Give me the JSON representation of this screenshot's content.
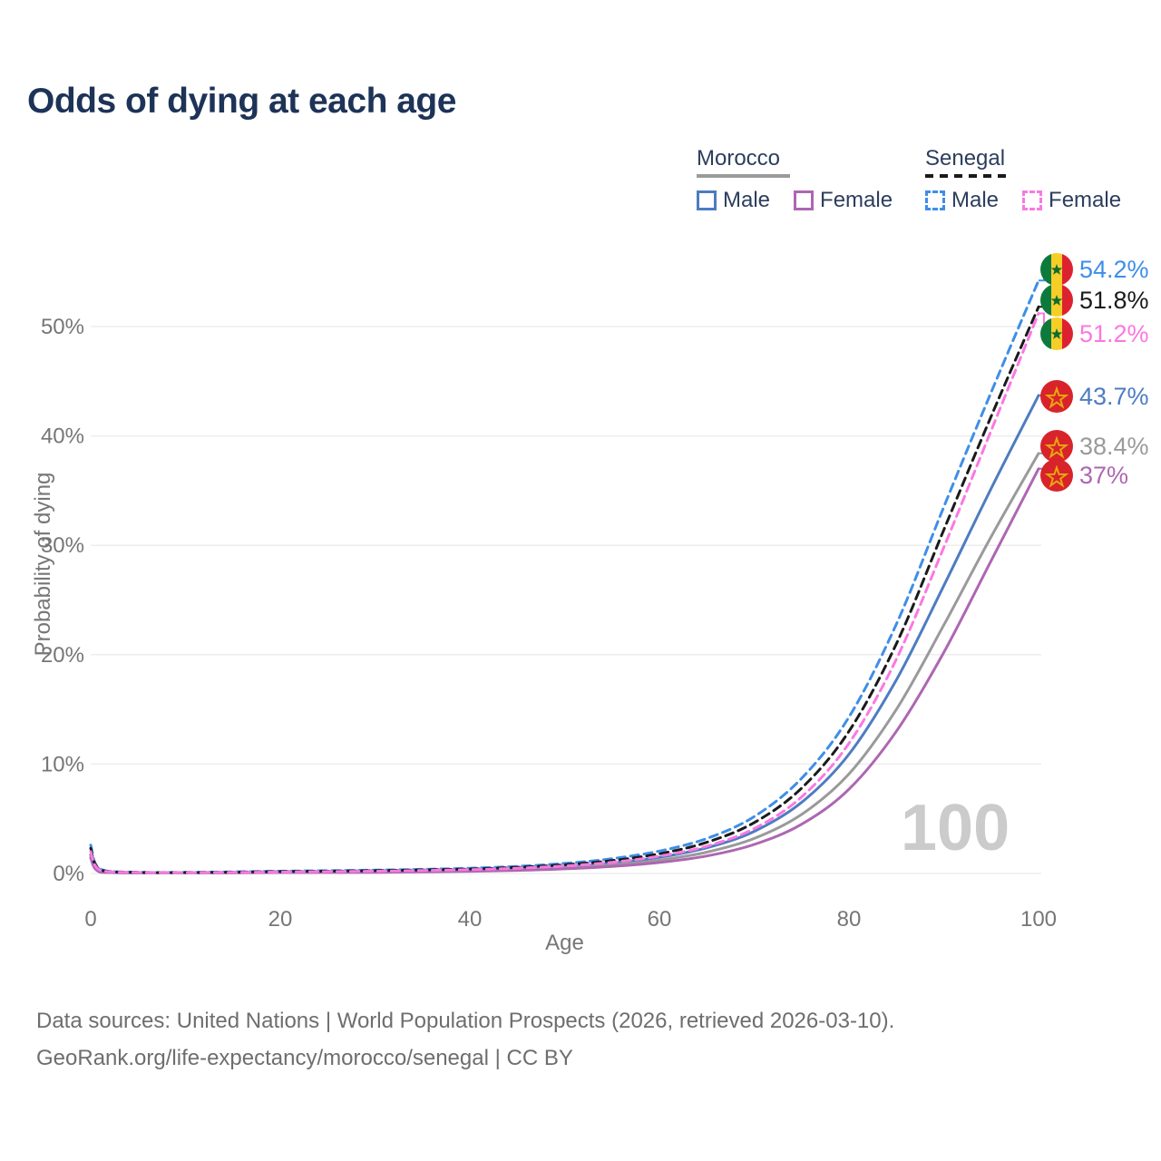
{
  "title": "Odds of dying at each age",
  "watermark": "100",
  "legend": {
    "groups": [
      {
        "country": "Morocco",
        "items": [
          {
            "label": "Male"
          },
          {
            "label": "Female"
          }
        ]
      },
      {
        "country": "Senegal",
        "items": [
          {
            "label": "Male"
          },
          {
            "label": "Female"
          }
        ]
      }
    ]
  },
  "footer": {
    "line1": "Data sources: United Nations | World Population Prospects (2026, retrieved 2026-03-10).",
    "line2": "GeoRank.org/life-expectancy/morocco/senegal | CC BY"
  },
  "chart_data": {
    "type": "line",
    "title": "Odds of dying at each age",
    "xlabel": "Age",
    "ylabel": "Probability of dying",
    "xlim": [
      0,
      100
    ],
    "ylim": [
      0,
      56
    ],
    "grid": "horizontal",
    "legend_position": "top-right",
    "x_ticks": [
      {
        "value": 0,
        "label": "0"
      },
      {
        "value": 20,
        "label": "20"
      },
      {
        "value": 40,
        "label": "40"
      },
      {
        "value": 60,
        "label": "60"
      },
      {
        "value": 80,
        "label": "80"
      },
      {
        "value": 100,
        "label": "100"
      }
    ],
    "y_ticks": [
      {
        "value": 0,
        "label": "0%"
      },
      {
        "value": 10,
        "label": "10%"
      },
      {
        "value": 20,
        "label": "20%"
      },
      {
        "value": 30,
        "label": "30%"
      },
      {
        "value": 40,
        "label": "40%"
      },
      {
        "value": 50,
        "label": "50%"
      }
    ],
    "x": [
      0,
      1,
      5,
      10,
      15,
      20,
      25,
      30,
      35,
      40,
      45,
      50,
      55,
      60,
      65,
      70,
      75,
      80,
      85,
      90,
      95,
      100
    ],
    "series": [
      {
        "id": "senegal-male",
        "name": "Senegal Male",
        "style": "dashed",
        "color": "#3e8ee8",
        "end_label": "54.2%",
        "flag": "senegal",
        "values": [
          2.6,
          0.4,
          0.12,
          0.1,
          0.15,
          0.21,
          0.26,
          0.31,
          0.38,
          0.48,
          0.65,
          0.92,
          1.35,
          2.05,
          3.2,
          5.2,
          8.7,
          14.3,
          22.8,
          33.5,
          44.0,
          54.2
        ]
      },
      {
        "id": "senegal-all",
        "name": "Senegal Both sexes",
        "style": "dashed",
        "color": "#1a1a1a",
        "end_label": "51.8%",
        "flag": "senegal",
        "values": [
          2.3,
          0.35,
          0.1,
          0.09,
          0.12,
          0.17,
          0.21,
          0.26,
          0.32,
          0.41,
          0.56,
          0.8,
          1.18,
          1.8,
          2.85,
          4.65,
          7.8,
          13.0,
          21.0,
          31.4,
          41.8,
          51.8
        ]
      },
      {
        "id": "senegal-female",
        "name": "Senegal Female",
        "style": "dashed",
        "color": "#fb78e2",
        "end_label": "51.2%",
        "flag": "senegal",
        "values": [
          2.0,
          0.3,
          0.09,
          0.08,
          0.1,
          0.13,
          0.17,
          0.21,
          0.27,
          0.35,
          0.48,
          0.69,
          1.02,
          1.58,
          2.5,
          4.1,
          7.0,
          11.9,
          19.6,
          29.8,
          40.5,
          51.2
        ]
      },
      {
        "id": "morocco-male",
        "name": "Morocco Male",
        "style": "solid",
        "color": "#4d7cc1",
        "end_label": "43.7%",
        "flag": "morocco",
        "values": [
          1.7,
          0.15,
          0.05,
          0.04,
          0.08,
          0.12,
          0.14,
          0.17,
          0.22,
          0.3,
          0.42,
          0.62,
          0.95,
          1.48,
          2.35,
          3.85,
          6.5,
          10.9,
          17.7,
          26.3,
          35.2,
          43.7
        ]
      },
      {
        "id": "morocco-all",
        "name": "Morocco Both sexes",
        "style": "solid",
        "color": "#9a9a9a",
        "end_label": "38.4%",
        "flag": "morocco",
        "values": [
          1.55,
          0.13,
          0.05,
          0.04,
          0.07,
          0.1,
          0.12,
          0.14,
          0.18,
          0.25,
          0.35,
          0.51,
          0.78,
          1.22,
          1.95,
          3.2,
          5.4,
          9.1,
          15.0,
          22.7,
          30.8,
          38.4
        ]
      },
      {
        "id": "morocco-female",
        "name": "Morocco Female",
        "style": "solid",
        "color": "#ae66b2",
        "end_label": "37%",
        "flag": "morocco",
        "values": [
          1.4,
          0.12,
          0.04,
          0.03,
          0.05,
          0.08,
          0.09,
          0.11,
          0.14,
          0.2,
          0.28,
          0.42,
          0.64,
          1.0,
          1.6,
          2.65,
          4.5,
          7.7,
          13.0,
          20.2,
          28.6,
          37.0
        ]
      }
    ],
    "colors": {
      "grid": "#ededed",
      "axis_text": "#767676",
      "title_text": "#1d3357",
      "watermark": "#cbcbcb"
    }
  }
}
